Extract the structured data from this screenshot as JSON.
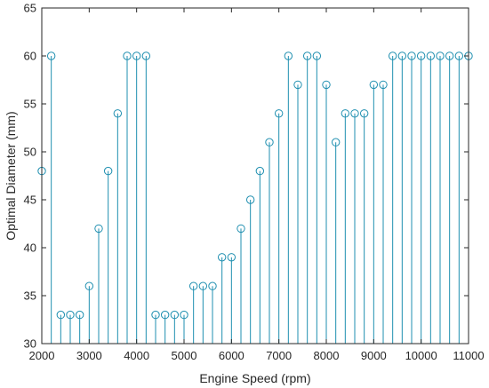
{
  "chart_data": {
    "type": "stem",
    "xlabel": "Engine Speed (rpm)",
    "ylabel": "Optimal Diameter (mm)",
    "xlim": [
      2000,
      11000
    ],
    "ylim": [
      30,
      65
    ],
    "baseline": 30,
    "xticks": [
      2000,
      3000,
      4000,
      5000,
      6000,
      7000,
      8000,
      9000,
      10000,
      11000
    ],
    "yticks": [
      30,
      35,
      40,
      45,
      50,
      55,
      60,
      65
    ],
    "grid": false,
    "marker": "circle",
    "color": "#1f8fb0",
    "x": [
      2000,
      2200,
      2400,
      2600,
      2800,
      3000,
      3200,
      3400,
      3600,
      3800,
      4000,
      4200,
      4400,
      4600,
      4800,
      5000,
      5200,
      5400,
      5600,
      5800,
      6000,
      6200,
      6400,
      6600,
      6800,
      7000,
      7200,
      7400,
      7600,
      7800,
      8000,
      8200,
      8400,
      8600,
      8800,
      9000,
      9200,
      9400,
      9600,
      9800,
      10000,
      10200,
      10400,
      10600,
      10800,
      11000
    ],
    "y": [
      48,
      60,
      33,
      33,
      33,
      36,
      42,
      48,
      54,
      60,
      60,
      60,
      33,
      33,
      33,
      33,
      36,
      36,
      36,
      39,
      39,
      42,
      45,
      48,
      51,
      54,
      60,
      57,
      60,
      60,
      57,
      51,
      54,
      54,
      54,
      57,
      57,
      60,
      60,
      60,
      60,
      60,
      60,
      60,
      60,
      60
    ]
  }
}
